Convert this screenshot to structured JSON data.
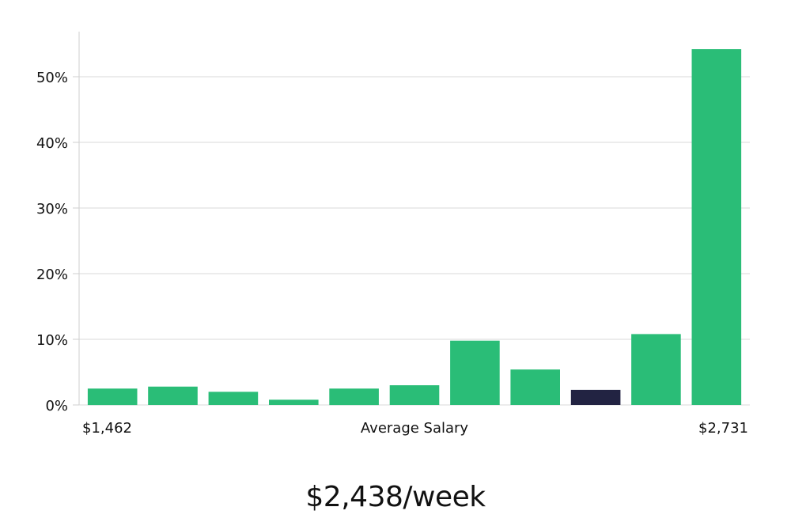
{
  "chart_data": {
    "type": "bar",
    "xlabel": "Average Salary",
    "x_range_labels": {
      "min": "$1,462",
      "max": "$2,731"
    },
    "values": [
      2.5,
      2.8,
      2.0,
      0.8,
      2.5,
      3.0,
      9.8,
      5.4,
      2.3,
      10.8,
      54.2
    ],
    "highlight_index": 8,
    "ylim": [
      0,
      57
    ],
    "yticks": [
      0,
      10,
      20,
      30,
      40,
      50
    ],
    "ytick_labels": [
      "0%",
      "10%",
      "20%",
      "30%",
      "40%",
      "50%"
    ],
    "grid": true,
    "colors": {
      "bar": "#2abd77",
      "highlight": "#222342",
      "grid": "#d9d9d9",
      "axis": "#cfcfcf"
    }
  },
  "summary": {
    "salary_text": "$2,438/week"
  }
}
